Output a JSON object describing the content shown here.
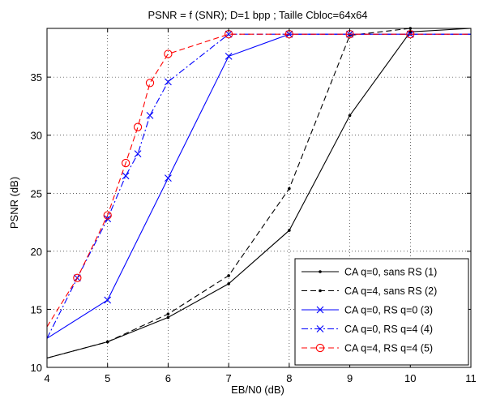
{
  "chart_data": {
    "type": "line",
    "title": "PSNR = f (SNR); D=1 bpp ; Taille Cbloc=64x64",
    "xlabel": "EB/N0 (dB)",
    "ylabel": "PSNR (dB)",
    "xlim": [
      4,
      11
    ],
    "ylim": [
      10,
      39.2
    ],
    "xticks": [
      "4",
      "5",
      "6",
      "7",
      "8",
      "9",
      "10",
      "11"
    ],
    "yticks": [
      "10",
      "15",
      "20",
      "25",
      "30",
      "35"
    ],
    "grid": true,
    "legend_position": "bottom-right",
    "series": [
      {
        "name": "CA q=0, sans RS (1)",
        "color": "#000000",
        "dash": "solid",
        "marker": "dot",
        "x": [
          4,
          5,
          6,
          7,
          8,
          9,
          10,
          11
        ],
        "y": [
          10.8,
          12.2,
          14.3,
          17.2,
          21.8,
          31.7,
          38.9,
          39.2
        ]
      },
      {
        "name": "CA q=4, sans RS (2)",
        "color": "#000000",
        "dash": "dashed",
        "marker": "dot",
        "x": [
          4,
          5,
          6,
          7,
          8,
          9,
          10,
          11
        ],
        "y": [
          10.8,
          12.2,
          14.6,
          17.9,
          25.4,
          38.6,
          39.2,
          39.2
        ]
      },
      {
        "name": "CA q=0, RS q=0  (3)",
        "color": "#0000ff",
        "dash": "solid",
        "marker": "x",
        "x": [
          4,
          5,
          6,
          7,
          8,
          9,
          10,
          11
        ],
        "y": [
          12.5,
          15.8,
          26.3,
          36.8,
          38.7,
          38.7,
          38.7,
          38.7
        ]
      },
      {
        "name": "CA q=0, RS q=4  (4)",
        "color": "#0000ff",
        "dash": "dashdot",
        "marker": "x",
        "x": [
          4,
          4.5,
          5,
          5.3,
          5.5,
          5.7,
          6,
          7,
          8,
          9,
          10,
          11
        ],
        "y": [
          12.5,
          17.7,
          22.8,
          26.5,
          28.4,
          31.7,
          34.6,
          38.7,
          38.7,
          38.7,
          38.7,
          38.7
        ]
      },
      {
        "name": "CA q=4, RS q=4  (5)",
        "color": "#ff0000",
        "dash": "dashed",
        "marker": "circle",
        "x": [
          4,
          4.5,
          5,
          5.3,
          5.5,
          5.7,
          6,
          7,
          8,
          9,
          10,
          11
        ],
        "y": [
          13.5,
          17.7,
          23.1,
          27.6,
          30.7,
          34.5,
          37.0,
          38.7,
          38.7,
          38.7,
          38.7,
          38.7
        ]
      }
    ]
  }
}
